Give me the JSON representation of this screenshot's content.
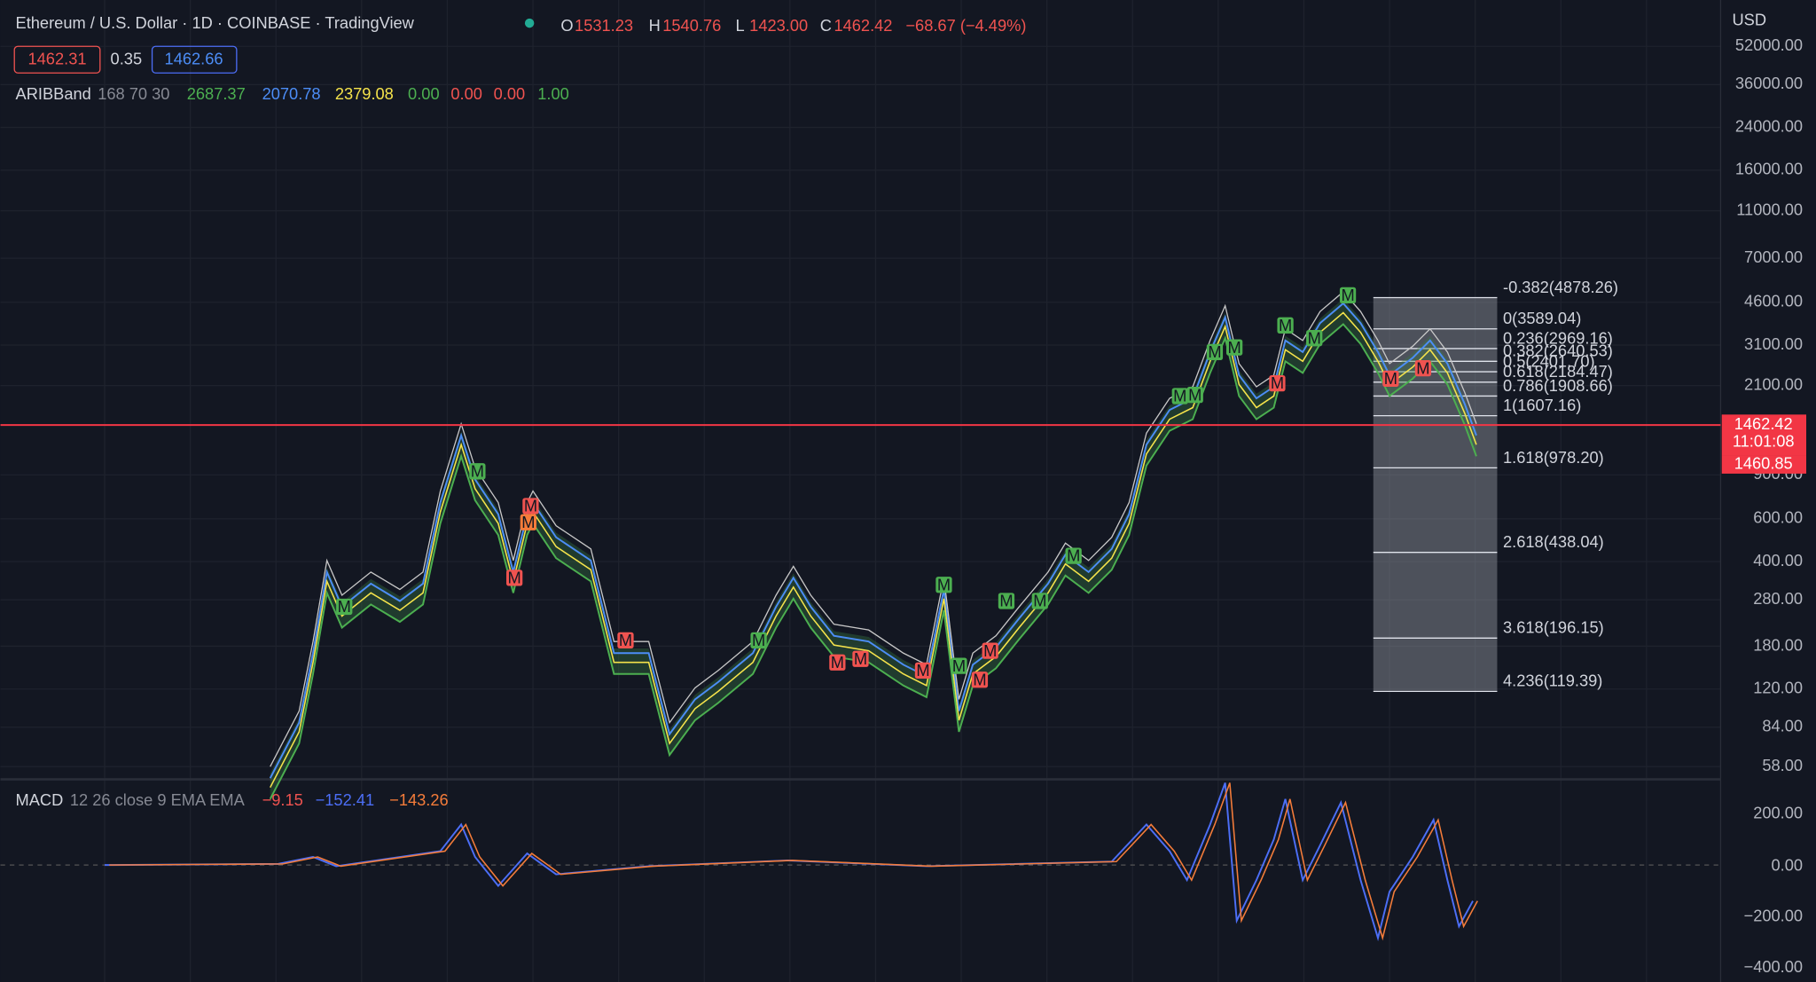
{
  "header": {
    "title": "Ethereum / U.S. Dollar · 1D · COINBASE · TradingView",
    "ohlc": [
      {
        "label": "O",
        "value": "1531.23"
      },
      {
        "label": "H",
        "value": "1540.76"
      },
      {
        "label": "L",
        "value": "1423.00"
      },
      {
        "label": "C",
        "value": "1462.42"
      }
    ],
    "change": "−68.67 (−4.49%)"
  },
  "quote": {
    "bid": "1462.31",
    "spread": "0.35",
    "ask": "1462.66"
  },
  "indicators": [
    {
      "name": "ARIBBand",
      "params": "168 70 30",
      "values": [
        {
          "text": "2687.37",
          "color": "#4caf50"
        },
        {
          "text": "2070.78",
          "color": "#4c8df6"
        },
        {
          "text": "2379.08",
          "color": "#f5e34b"
        },
        {
          "text": "0.00",
          "color": "#4caf50"
        },
        {
          "text": "0.00",
          "color": "#f05350"
        },
        {
          "text": "0.00",
          "color": "#f05350"
        },
        {
          "text": "1.00",
          "color": "#4caf50"
        }
      ]
    },
    {
      "name": "MACD",
      "params": "12 26 close 9 EMA EMA",
      "values": [
        {
          "text": "−9.15",
          "color": "#f05350"
        },
        {
          "text": "−152.41",
          "color": "#4c6ef6"
        },
        {
          "text": "−143.26",
          "color": "#f57c3a"
        }
      ]
    }
  ],
  "price_axis": {
    "currency": "USD",
    "labels": [
      "52000.00",
      "36000.00",
      "24000.00",
      "16000.00",
      "11000.00",
      "7000.00",
      "4600.00",
      "3100.00",
      "2100.00",
      "900.00",
      "600.00",
      "400.00",
      "280.00",
      "180.00",
      "120.00",
      "84.00",
      "58.00"
    ]
  },
  "macd_axis": {
    "labels": [
      "200.00",
      "0.00",
      "−200.00",
      "−400.00"
    ]
  },
  "price_tags": {
    "last": "1462.42",
    "countdown": "11:01:08",
    "other": "1460.85"
  },
  "fib_levels": [
    "-0.382(4878.26)",
    "0(3589.04)",
    "0.236(2969.16)",
    "0.382(2640.53)",
    "0.5(2401.70)",
    "0.618(2184.47)",
    "0.786(1908.66)",
    "1(1607.16)",
    "1.618(978.20)",
    "2.618(438.04)",
    "3.618(196.15)",
    "4.236(119.39)"
  ],
  "markers": [
    {
      "text": "M",
      "color": "#4caf50"
    },
    {
      "text": "M",
      "color": "#4caf50"
    },
    {
      "text": "M",
      "color": "#4caf50"
    },
    {
      "text": "M",
      "color": "#4caf50"
    },
    {
      "text": "M",
      "color": "#4caf50"
    },
    {
      "text": "M",
      "color": "#4caf50"
    },
    {
      "text": "M",
      "color": "#4caf50"
    },
    {
      "text": "M",
      "color": "#4caf50"
    },
    {
      "text": "M",
      "color": "#4caf50"
    },
    {
      "text": "M",
      "color": "#4caf50"
    },
    {
      "text": "M",
      "color": "#4caf50"
    },
    {
      "text": "M",
      "color": "#4caf50"
    },
    {
      "text": "M",
      "color": "#4caf50"
    },
    {
      "text": "M",
      "color": "#4caf50"
    },
    {
      "text": "M",
      "color": "#4caf50"
    },
    {
      "text": "M",
      "color": "#f05350"
    },
    {
      "text": "M",
      "color": "#f05350"
    },
    {
      "text": "M",
      "color": "#f57c3a"
    },
    {
      "text": "M",
      "color": "#f05350"
    },
    {
      "text": "M",
      "color": "#f05350"
    },
    {
      "text": "M",
      "color": "#f05350"
    },
    {
      "text": "M",
      "color": "#f05350"
    },
    {
      "text": "M",
      "color": "#f05350"
    },
    {
      "text": "M",
      "color": "#f05350"
    },
    {
      "text": "M",
      "color": "#f05350"
    },
    {
      "text": "M",
      "color": "#f05350"
    },
    {
      "text": "M",
      "color": "#f05350"
    }
  ]
}
